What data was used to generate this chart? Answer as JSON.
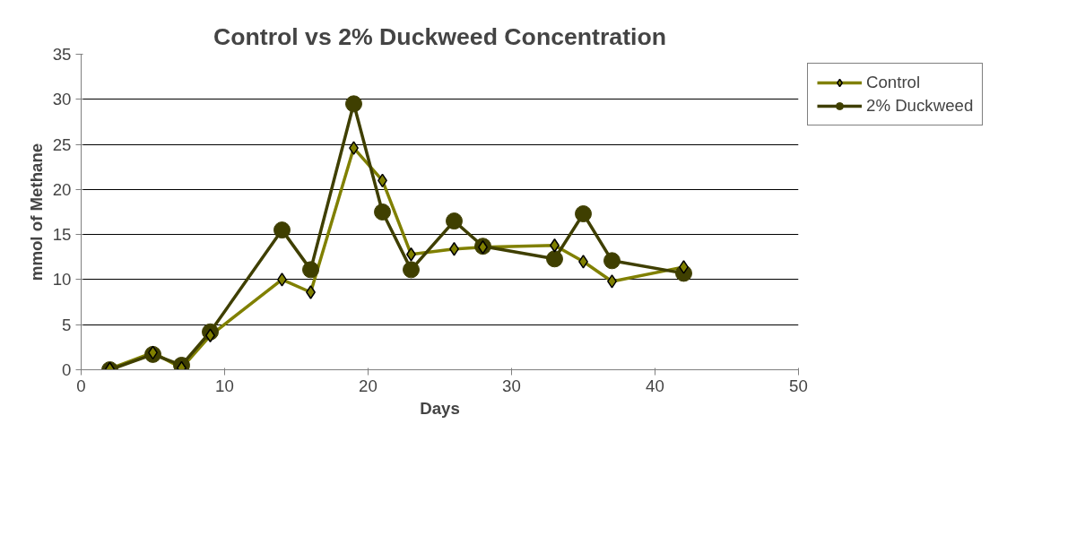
{
  "chart_data": {
    "type": "line",
    "title": "Control vs 2% Duckweed Concentration",
    "xlabel": "Days",
    "ylabel": "mmol of Methane",
    "x": [
      2,
      5,
      7,
      9,
      14,
      16,
      19,
      21,
      23,
      26,
      28,
      33,
      35,
      37,
      42
    ],
    "series": [
      {
        "name": "Control",
        "color": "#808000",
        "marker": "diamond",
        "values": [
          0.1,
          1.9,
          0.2,
          3.8,
          10,
          8.6,
          24.6,
          21,
          12.8,
          13.4,
          13.6,
          13.8,
          12,
          9.8,
          11.4
        ]
      },
      {
        "name": "2% Duckweed",
        "color": "#3f3f00",
        "marker": "circle",
        "values": [
          0,
          1.7,
          0.5,
          4.2,
          15.5,
          11.1,
          29.5,
          17.5,
          11.1,
          16.5,
          13.7,
          12.3,
          17.3,
          12.1,
          10.7
        ]
      }
    ],
    "xlim": [
      0,
      50
    ],
    "xticks": [
      0,
      10,
      20,
      30,
      40,
      50
    ],
    "ylim": [
      0,
      35
    ],
    "yticks": [
      0,
      5,
      10,
      15,
      20,
      25,
      30,
      35
    ],
    "grid": "y",
    "legend": "right",
    "line_style": "solid"
  }
}
